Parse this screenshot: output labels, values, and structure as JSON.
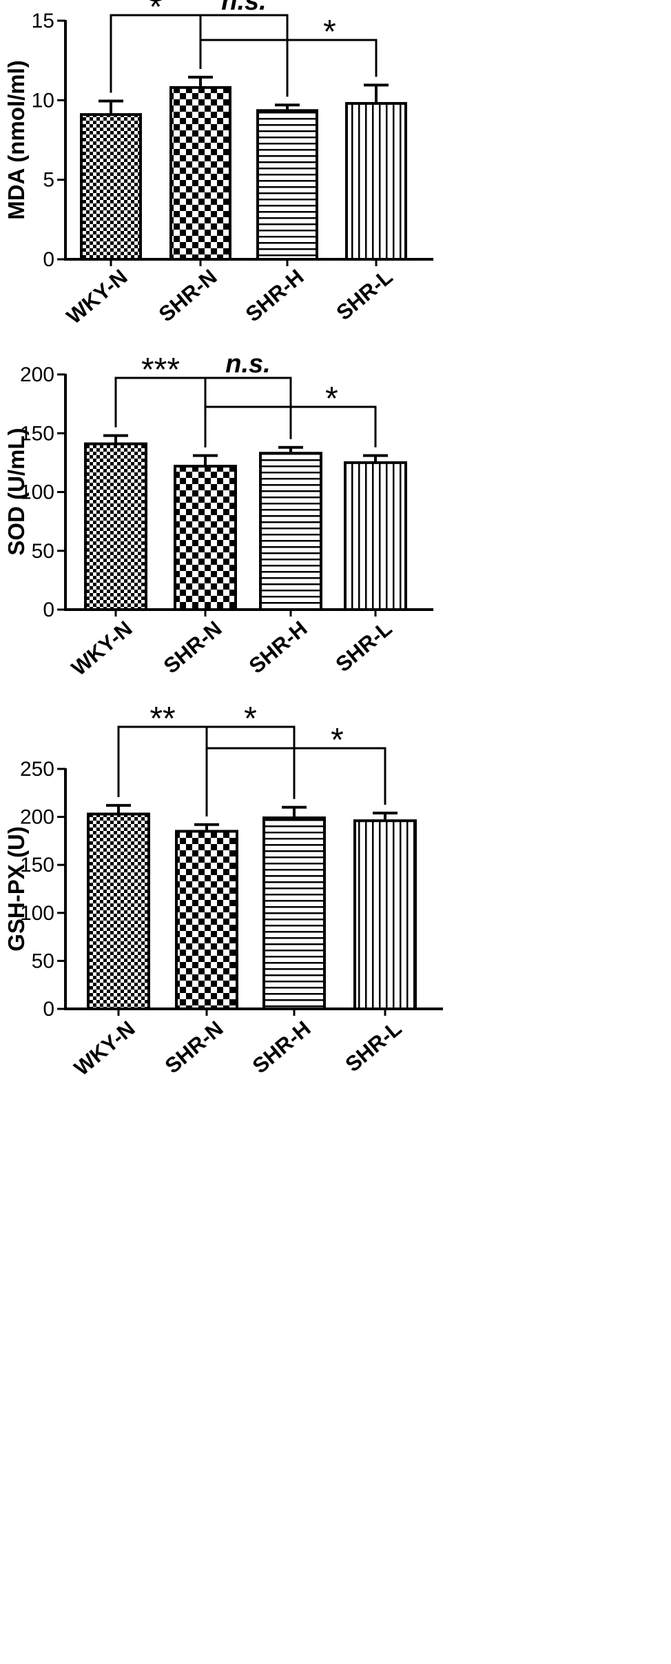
{
  "chart_data": [
    {
      "type": "bar",
      "categories": [
        "WKY-N",
        "SHR-N",
        "SHR-H",
        "SHR-L"
      ],
      "values": [
        9.1,
        10.8,
        9.35,
        9.8
      ],
      "errors": [
        0.85,
        0.65,
        0.35,
        1.15
      ],
      "ylabel": "MDA (nmol/ml)",
      "ylim": [
        0,
        15
      ],
      "yticks": [
        0,
        5,
        10,
        15
      ],
      "patterns": [
        "fine-check",
        "coarse-check",
        "horizontal-stripes",
        "vertical-stripes"
      ],
      "significance": [
        {
          "from": 0,
          "to": 1,
          "label": "*"
        },
        {
          "from": 1,
          "to": 2,
          "label": "n.s."
        },
        {
          "from": 1,
          "to": 3,
          "label": "*"
        }
      ]
    },
    {
      "type": "bar",
      "categories": [
        "WKY-N",
        "SHR-N",
        "SHR-H",
        "SHR-L"
      ],
      "values": [
        141,
        122,
        133,
        125
      ],
      "errors": [
        7,
        9,
        5,
        6
      ],
      "ylabel": "SOD (U/mL)",
      "ylim": [
        0,
        200
      ],
      "yticks": [
        0,
        50,
        100,
        150,
        200
      ],
      "patterns": [
        "fine-check",
        "coarse-check",
        "horizontal-stripes",
        "vertical-stripes"
      ],
      "significance": [
        {
          "from": 0,
          "to": 1,
          "label": "***"
        },
        {
          "from": 1,
          "to": 2,
          "label": "n.s."
        },
        {
          "from": 1,
          "to": 3,
          "label": "*"
        }
      ]
    },
    {
      "type": "bar",
      "categories": [
        "WKY-N",
        "SHR-N",
        "SHR-H",
        "SHR-L"
      ],
      "values": [
        203,
        185,
        199,
        196
      ],
      "errors": [
        9,
        7,
        11,
        8
      ],
      "ylabel": "GSH-PX (U)",
      "ylim": [
        0,
        250
      ],
      "yticks": [
        0,
        50,
        100,
        150,
        200,
        250
      ],
      "patterns": [
        "fine-check",
        "coarse-check",
        "horizontal-stripes",
        "vertical-stripes"
      ],
      "significance": [
        {
          "from": 0,
          "to": 1,
          "label": "**"
        },
        {
          "from": 1,
          "to": 2,
          "label": "*"
        },
        {
          "from": 1,
          "to": 3,
          "label": "*"
        }
      ]
    }
  ]
}
